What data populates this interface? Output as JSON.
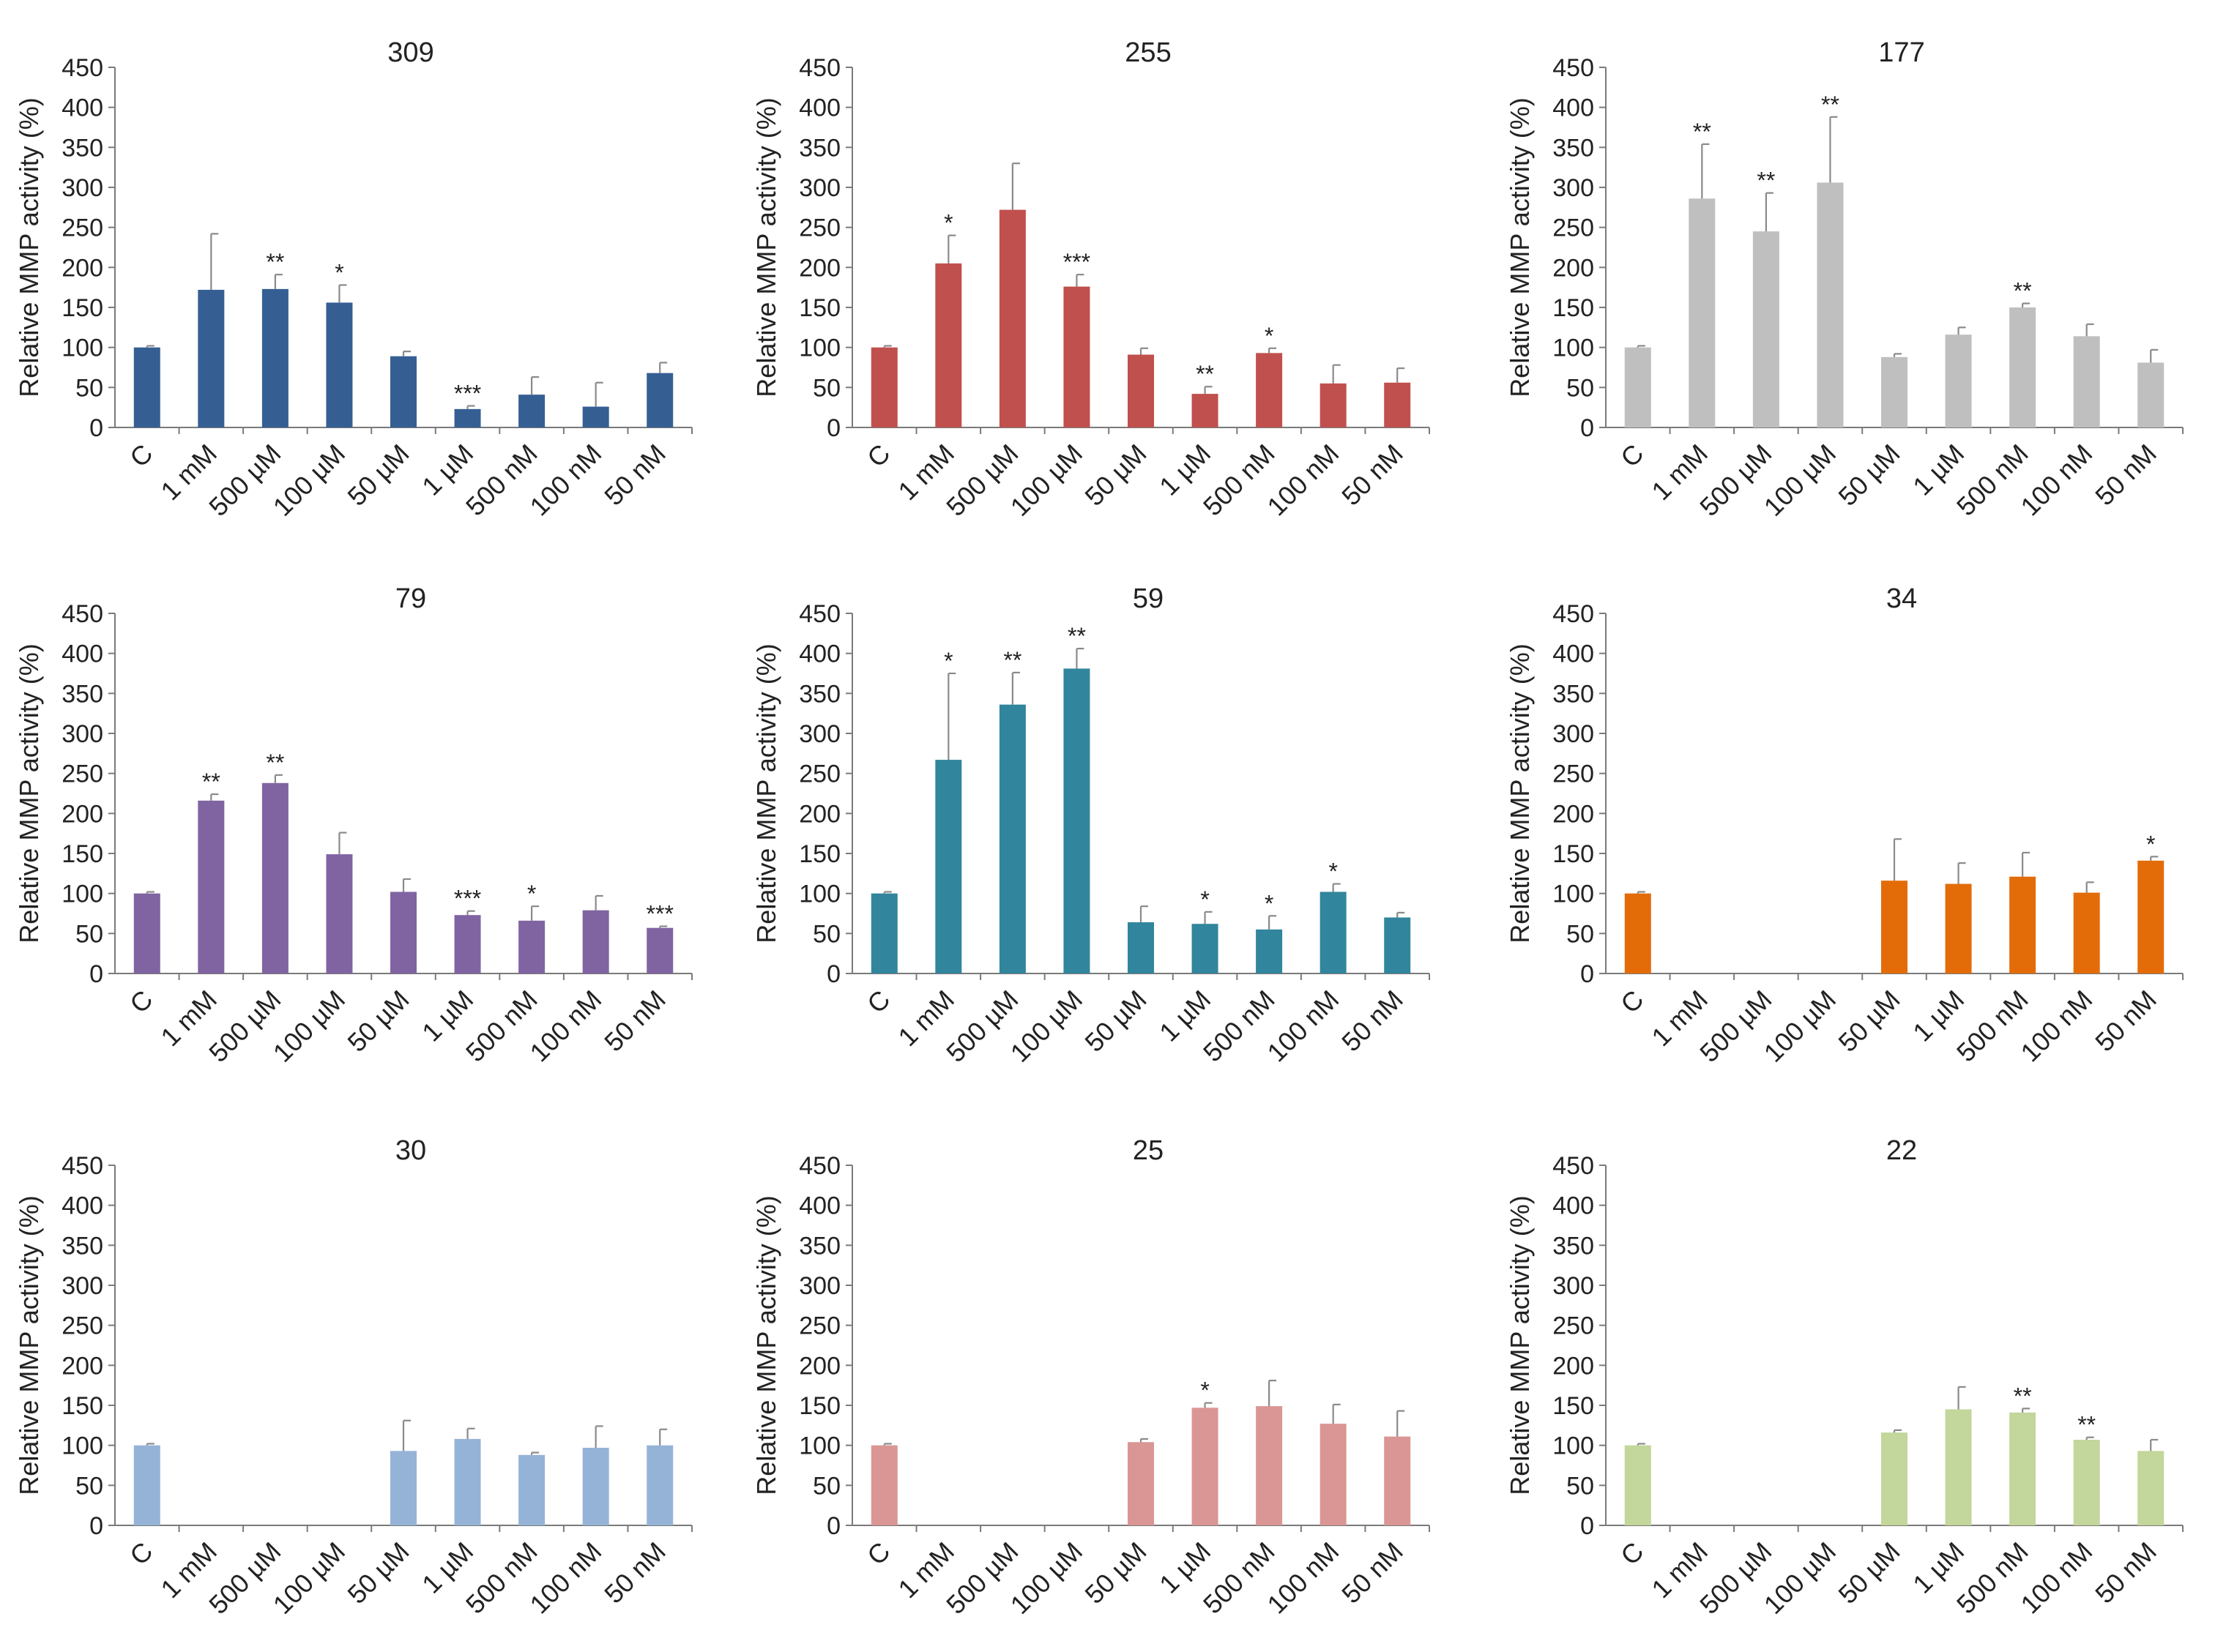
{
  "figure": {
    "categories": [
      "C",
      "1 mM",
      "500 µM",
      "100 µM",
      "50 µM",
      "1 µM",
      "500 nM",
      "100 nM",
      "50 nM"
    ],
    "ylabel": "Relative MMP activity (%)",
    "ylim": [
      0,
      450
    ],
    "yticks": [
      0,
      50,
      100,
      150,
      200,
      250,
      300,
      350,
      400,
      450
    ]
  },
  "chart_data": [
    {
      "type": "bar",
      "title": "309",
      "color": "#355f93",
      "categories": [
        "C",
        "1 mM",
        "500 µM",
        "100 µM",
        "50 µM",
        "1 µM",
        "500 nM",
        "100 nM",
        "50 nM"
      ],
      "values": [
        100,
        172,
        173,
        156,
        89,
        23,
        41,
        26,
        68
      ],
      "errors": [
        2,
        70,
        18,
        22,
        6,
        4,
        22,
        30,
        13
      ],
      "significance": [
        "",
        "",
        "**",
        "*",
        "",
        "***",
        "",
        "",
        ""
      ],
      "ylabel": "Relative MMP activity (%)",
      "ylim": [
        0,
        450
      ]
    },
    {
      "type": "bar",
      "title": "255",
      "color": "#c0504d",
      "categories": [
        "C",
        "1 mM",
        "500 µM",
        "100 µM",
        "50 µM",
        "1 µM",
        "500 nM",
        "100 nM",
        "50 nM"
      ],
      "values": [
        100,
        205,
        272,
        176,
        91,
        42,
        93,
        55,
        56
      ],
      "errors": [
        2,
        35,
        58,
        15,
        8,
        9,
        6,
        23,
        18
      ],
      "significance": [
        "",
        "*",
        "",
        "***",
        "",
        "**",
        "*",
        "",
        ""
      ],
      "ylabel": "Relative MMP activity (%)",
      "ylim": [
        0,
        450
      ]
    },
    {
      "type": "bar",
      "title": "177",
      "color": "#bfbfbf",
      "categories": [
        "C",
        "1 mM",
        "500 µM",
        "100 µM",
        "50 µM",
        "1 µM",
        "500 nM",
        "100 nM",
        "50 nM"
      ],
      "values": [
        100,
        286,
        245,
        306,
        88,
        116,
        150,
        114,
        81
      ],
      "errors": [
        2,
        68,
        48,
        82,
        4,
        9,
        5,
        15,
        16
      ],
      "significance": [
        "",
        "**",
        "**",
        "**",
        "",
        "",
        "**",
        "",
        ""
      ],
      "ylabel": "Relative MMP activity (%)",
      "ylim": [
        0,
        450
      ]
    },
    {
      "type": "bar",
      "title": "79",
      "color": "#8064a2",
      "categories": [
        "C",
        "1 mM",
        "500 µM",
        "100 µM",
        "50 µM",
        "1 µM",
        "500 nM",
        "100 nM",
        "50 nM"
      ],
      "values": [
        100,
        216,
        238,
        149,
        102,
        73,
        66,
        79,
        57
      ],
      "errors": [
        2,
        8,
        10,
        27,
        16,
        5,
        18,
        18,
        2
      ],
      "significance": [
        "",
        "**",
        "**",
        "",
        "",
        "***",
        "*",
        "",
        "***"
      ],
      "ylabel": "Relative MMP activity (%)",
      "ylim": [
        0,
        450
      ]
    },
    {
      "type": "bar",
      "title": "59",
      "color": "#31859c",
      "categories": [
        "C",
        "1 mM",
        "500 µM",
        "100 µM",
        "50 µM",
        "1 µM",
        "500 nM",
        "100 nM",
        "50 nM"
      ],
      "values": [
        100,
        267,
        336,
        381,
        64,
        62,
        55,
        102,
        70
      ],
      "errors": [
        2,
        108,
        40,
        25,
        20,
        15,
        17,
        10,
        6
      ],
      "significance": [
        "",
        "*",
        "**",
        "**",
        "",
        "*",
        "*",
        "*",
        ""
      ],
      "ylabel": "Relative MMP activity (%)",
      "ylim": [
        0,
        450
      ]
    },
    {
      "type": "bar",
      "title": "34",
      "color": "#e36c09",
      "categories": [
        "C",
        "1 mM",
        "500 µM",
        "100 µM",
        "50 µM",
        "1 µM",
        "500 nM",
        "100 nM",
        "50 nM"
      ],
      "values": [
        100,
        null,
        null,
        null,
        116,
        112,
        121,
        101,
        141
      ],
      "errors": [
        2,
        null,
        null,
        null,
        52,
        26,
        30,
        13,
        5
      ],
      "significance": [
        "",
        "",
        "",
        "",
        "",
        "",
        "",
        "",
        "*"
      ],
      "ylabel": "Relative MMP activity (%)",
      "ylim": [
        0,
        450
      ]
    },
    {
      "type": "bar",
      "title": "30",
      "color": "#95b3d7",
      "categories": [
        "C",
        "1 mM",
        "500 µM",
        "100 µM",
        "50 µM",
        "1 µM",
        "500 nM",
        "100 nM",
        "50 nM"
      ],
      "values": [
        100,
        null,
        null,
        null,
        93,
        108,
        88,
        97,
        100
      ],
      "errors": [
        2,
        null,
        null,
        null,
        38,
        13,
        3,
        27,
        20
      ],
      "significance": [
        "",
        "",
        "",
        "",
        "",
        "",
        "",
        "",
        ""
      ],
      "ylabel": "Relative MMP activity (%)",
      "ylim": [
        0,
        450
      ]
    },
    {
      "type": "bar",
      "title": "25",
      "color": "#da9694",
      "categories": [
        "C",
        "1 mM",
        "500 µM",
        "100 µM",
        "50 µM",
        "1 µM",
        "500 nM",
        "100 nM",
        "50 nM"
      ],
      "values": [
        100,
        null,
        null,
        null,
        104,
        147,
        149,
        127,
        111
      ],
      "errors": [
        2,
        null,
        null,
        null,
        4,
        6,
        32,
        24,
        32
      ],
      "significance": [
        "",
        "",
        "",
        "",
        "",
        "*",
        "",
        "",
        ""
      ],
      "ylabel": "Relative MMP activity (%)",
      "ylim": [
        0,
        450
      ]
    },
    {
      "type": "bar",
      "title": "22",
      "color": "#c3d69b",
      "categories": [
        "C",
        "1 mM",
        "500 µM",
        "100 µM",
        "50 µM",
        "1 µM",
        "500 nM",
        "100 nM",
        "50 nM"
      ],
      "values": [
        100,
        null,
        null,
        null,
        116,
        145,
        141,
        107,
        93
      ],
      "errors": [
        2,
        null,
        null,
        null,
        3,
        28,
        5,
        3,
        14
      ],
      "significance": [
        "",
        "",
        "",
        "",
        "",
        "",
        "**",
        "**",
        ""
      ],
      "ylabel": "Relative MMP activity (%)",
      "ylim": [
        0,
        450
      ]
    }
  ]
}
